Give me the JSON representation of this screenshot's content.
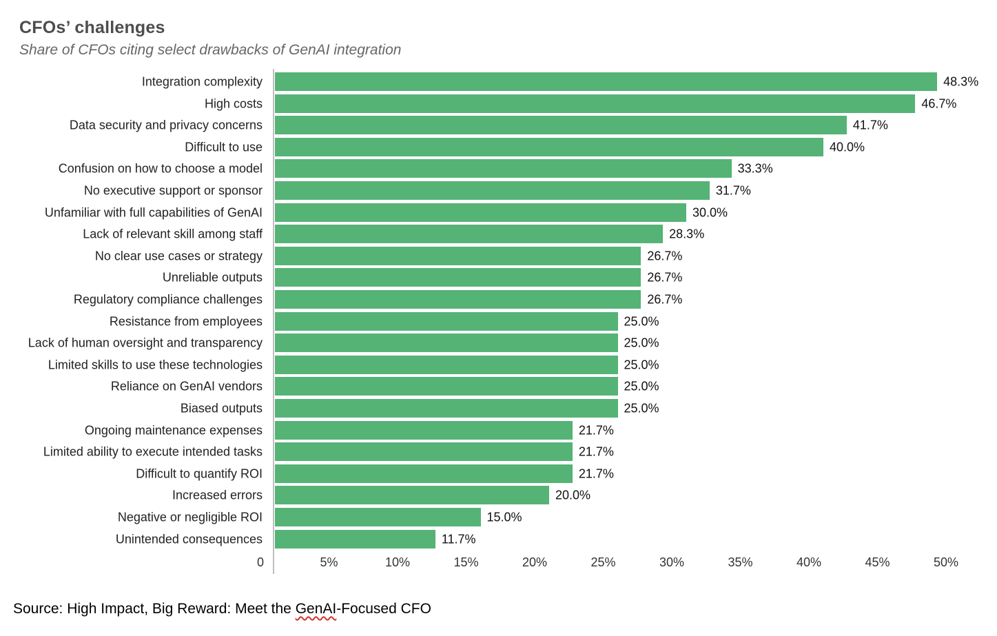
{
  "header": {
    "title": "CFOs’ challenges",
    "subtitle": "Share of CFOs citing select drawbacks of GenAI integration"
  },
  "chart_data": {
    "type": "bar",
    "orientation": "horizontal",
    "title": "CFOs’ challenges",
    "subtitle": "Share of CFOs citing select drawbacks of GenAI integration",
    "xlim": [
      0,
      50
    ],
    "grid": false,
    "legend": false,
    "x_tick_labels": [
      "0",
      "5%",
      "10%",
      "15%",
      "20%",
      "25%",
      "30%",
      "35%",
      "40%",
      "45%",
      "50%"
    ],
    "x_tick_values": [
      0,
      5,
      10,
      15,
      20,
      25,
      30,
      35,
      40,
      45,
      50
    ],
    "categories": [
      "Integration complexity",
      "High costs",
      "Data security and privacy concerns",
      "Difficult to use",
      "Confusion on how to choose a model",
      "No executive support or sponsor",
      "Unfamiliar with full capabilities of GenAI",
      "Lack of relevant skill among staff",
      "No clear use cases or strategy",
      "Unreliable outputs",
      "Regulatory compliance challenges",
      "Resistance from employees",
      "Lack of human oversight and transparency",
      "Limited skills to use these technologies",
      "Reliance on GenAI vendors",
      "Biased outputs",
      "Ongoing maintenance expenses",
      "Limited ability to execute intended tasks",
      "Difficult to quantify ROI",
      "Increased errors",
      "Negative or negligible ROI",
      "Unintended consequences"
    ],
    "values": [
      48.3,
      46.7,
      41.7,
      40.0,
      33.3,
      31.7,
      30.0,
      28.3,
      26.7,
      26.7,
      26.7,
      25.0,
      25.0,
      25.0,
      25.0,
      25.0,
      21.7,
      21.7,
      21.7,
      20.0,
      15.0,
      11.7
    ],
    "value_labels": [
      "48.3%",
      "46.7%",
      "41.7%",
      "40.0%",
      "33.3%",
      "31.7%",
      "30.0%",
      "28.3%",
      "26.7%",
      "26.7%",
      "26.7%",
      "25.0%",
      "25.0%",
      "25.0%",
      "25.0%",
      "25.0%",
      "21.7%",
      "21.7%",
      "21.7%",
      "20.0%",
      "15.0%",
      "11.7%"
    ]
  },
  "source": {
    "prefix": "Source: High Impact, Big Reward: Meet the ",
    "misspelled_word": "GenAI",
    "suffix": "-Focused CFO"
  },
  "colors": {
    "bar": "#55b376",
    "axis_line": "#bfbfbf",
    "title": "#4d4d4d",
    "subtitle": "#666666",
    "label": "#222222",
    "value": "#111111",
    "tick": "#333333",
    "squiggle": "#d0342c"
  }
}
